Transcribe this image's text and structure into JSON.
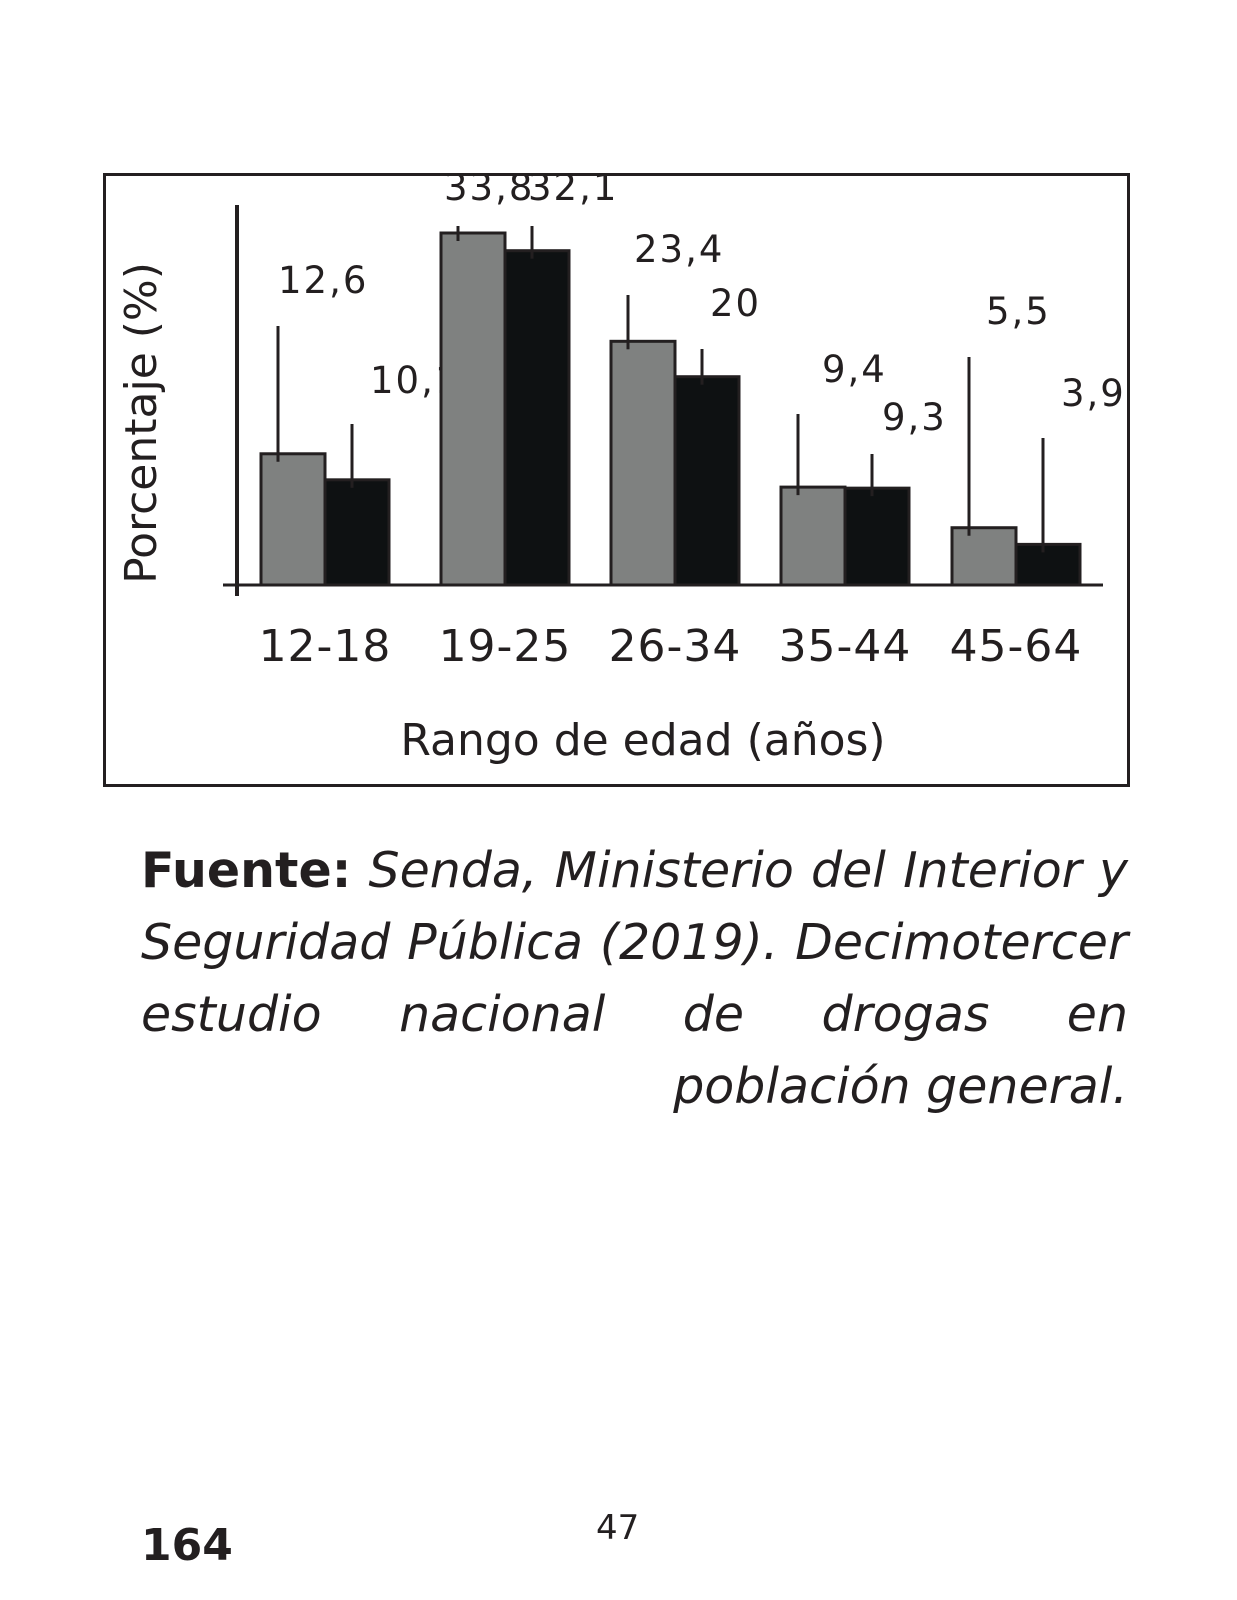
{
  "chart_data": {
    "type": "bar",
    "title": "",
    "xlabel": "Rango de edad (años)",
    "ylabel": "Porcentaje (%)",
    "categories": [
      "12-18",
      "19-25",
      "26-34",
      "35-44",
      "45-64"
    ],
    "series": [
      {
        "values": [
          12.6,
          33.8,
          23.4,
          9.4,
          5.5
        ],
        "labels": [
          "12,6",
          "33,8",
          "23,4",
          "9,4",
          "5,5"
        ],
        "color": "#7f8180"
      },
      {
        "values": [
          10.1,
          32.1,
          20,
          9.3,
          3.9
        ],
        "labels": [
          "10,1",
          "32,1",
          "20",
          "9,3",
          "3,9"
        ],
        "color": "#0e1112"
      }
    ],
    "ylim": [
      0,
      33.8
    ],
    "grid": false,
    "legend": "none"
  },
  "caption": {
    "source_label": "Fuente:",
    "source_text": "Senda, Ministerio del Interior y Seguridad Pública (2019). Decimotercer estudio nacional de drogas en población general."
  },
  "page_number": "164",
  "folio": "47"
}
